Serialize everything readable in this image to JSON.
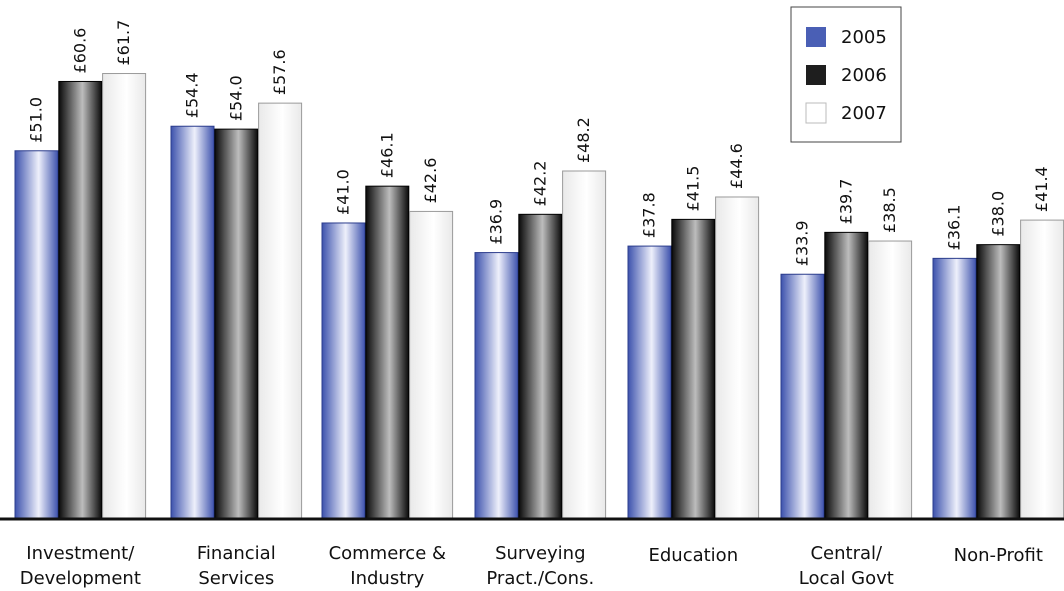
{
  "chart_data": {
    "type": "bar",
    "title": "",
    "xlabel": "",
    "ylabel": "",
    "ylim": [
      0,
      66
    ],
    "grid": false,
    "legend_position": "top-right",
    "value_prefix": "£",
    "categories": [
      "Investment/\nDevelopment",
      "Financial\nServices",
      "Commerce &\nIndustry",
      "Surveying\nPract./Cons.",
      "Education",
      "Central/\nLocal Govt",
      "Non-Profit"
    ],
    "series": [
      {
        "name": "2005",
        "values": [
          51.0,
          54.4,
          41.0,
          36.9,
          37.8,
          33.9,
          36.1
        ],
        "labels": [
          "£51.0",
          "£54.4",
          "£41.0",
          "£36.9",
          "£37.8",
          "£33.9",
          "£36.1"
        ],
        "color": "#4a5fb5",
        "style": "blue-gradient"
      },
      {
        "name": "2006",
        "values": [
          60.6,
          54.0,
          46.1,
          42.2,
          41.5,
          39.7,
          38.0
        ],
        "labels": [
          "£60.6",
          "£54.0",
          "£46.1",
          "£42.2",
          "£41.5",
          "£39.7",
          "£38.0"
        ],
        "color": "#1e1e1e",
        "style": "black-gradient"
      },
      {
        "name": "2007",
        "values": [
          61.7,
          57.6,
          42.6,
          48.2,
          44.6,
          38.5,
          41.4
        ],
        "labels": [
          "£61.7",
          "£57.6",
          "£42.6",
          "£48.2",
          "£44.6",
          "£38.5",
          "£41.4"
        ],
        "color": "#ffffff",
        "style": "white-gradient"
      }
    ]
  }
}
